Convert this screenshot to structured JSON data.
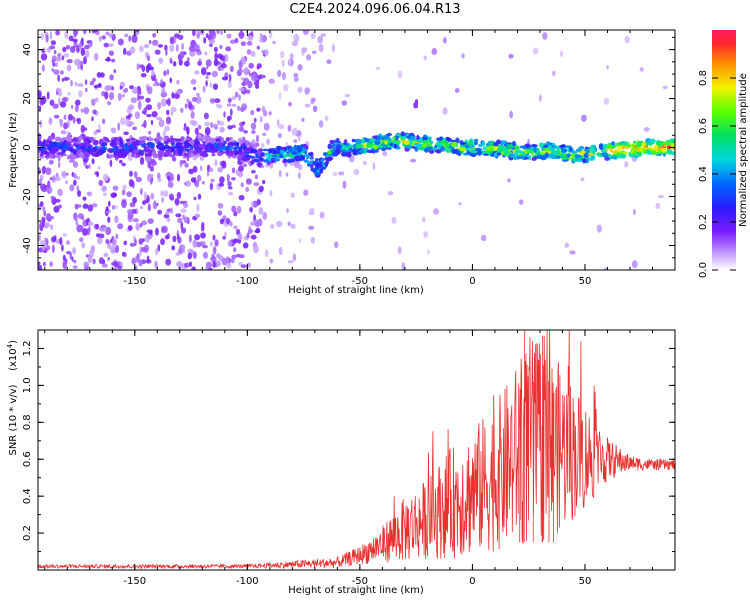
{
  "title": "C2E4.2024.096.06.04.R13",
  "chart_data": [
    {
      "type": "heatmap",
      "xlabel": "Height of straight line (km)",
      "ylabel": "Frequency (Hz)",
      "xlim": [
        -193,
        90
      ],
      "ylim": [
        -50,
        48
      ],
      "xticks": [
        -150,
        -100,
        -50,
        0,
        50
      ],
      "yticks": [
        -40,
        -20,
        0,
        20,
        40
      ],
      "colorbar": {
        "label": "Normalized spectral amplitude",
        "range": [
          0.0,
          1.0
        ],
        "ticks": [
          "0.0",
          "0.2",
          "0.4",
          "0.6",
          "0.8"
        ],
        "colormap": "rainbow"
      },
      "ridge": {
        "x": [
          -193,
          -180,
          -165,
          -150,
          -135,
          -120,
          -105,
          -95,
          -85,
          -75,
          -68,
          -62,
          -55,
          -45,
          -35,
          -25,
          -15,
          -5,
          5,
          15,
          25,
          35,
          45,
          55,
          65,
          75,
          90
        ],
        "y": [
          0,
          0,
          0,
          0,
          0,
          0,
          0,
          -4,
          -3,
          -2,
          -9,
          0,
          0,
          1,
          3,
          2,
          1,
          0,
          0,
          -1,
          -2,
          -1,
          -3,
          -2,
          -1,
          0,
          0
        ]
      }
    },
    {
      "type": "line",
      "xlabel": "Height of straight line (km)",
      "ylabel": "SNR (10 * v/v)",
      "multiplier": "(x10",
      "multiplier_exp": "4",
      "multiplier_close": ")",
      "xlim": [
        -193,
        90
      ],
      "ylim": [
        0,
        1.3
      ],
      "xticks": [
        -150,
        -100,
        -50,
        0,
        50
      ],
      "yticks": [
        "0.2",
        "0.4",
        "0.6",
        "0.8",
        "1.0",
        "1.2"
      ],
      "color": "#e8302f",
      "envelope": {
        "x": [
          -193,
          -100,
          -80,
          -60,
          -50,
          -40,
          -30,
          -20,
          -10,
          0,
          10,
          20,
          25,
          30,
          40,
          50,
          60,
          70,
          80,
          90
        ],
        "y": [
          0.02,
          0.02,
          0.03,
          0.04,
          0.08,
          0.14,
          0.22,
          0.28,
          0.36,
          0.42,
          0.5,
          0.62,
          0.7,
          0.68,
          0.66,
          0.62,
          0.6,
          0.58,
          0.57,
          0.57
        ],
        "spread": [
          0.01,
          0.01,
          0.02,
          0.03,
          0.05,
          0.1,
          0.18,
          0.22,
          0.3,
          0.35,
          0.4,
          0.5,
          0.58,
          0.55,
          0.45,
          0.3,
          0.12,
          0.04,
          0.03,
          0.03
        ]
      }
    }
  ]
}
